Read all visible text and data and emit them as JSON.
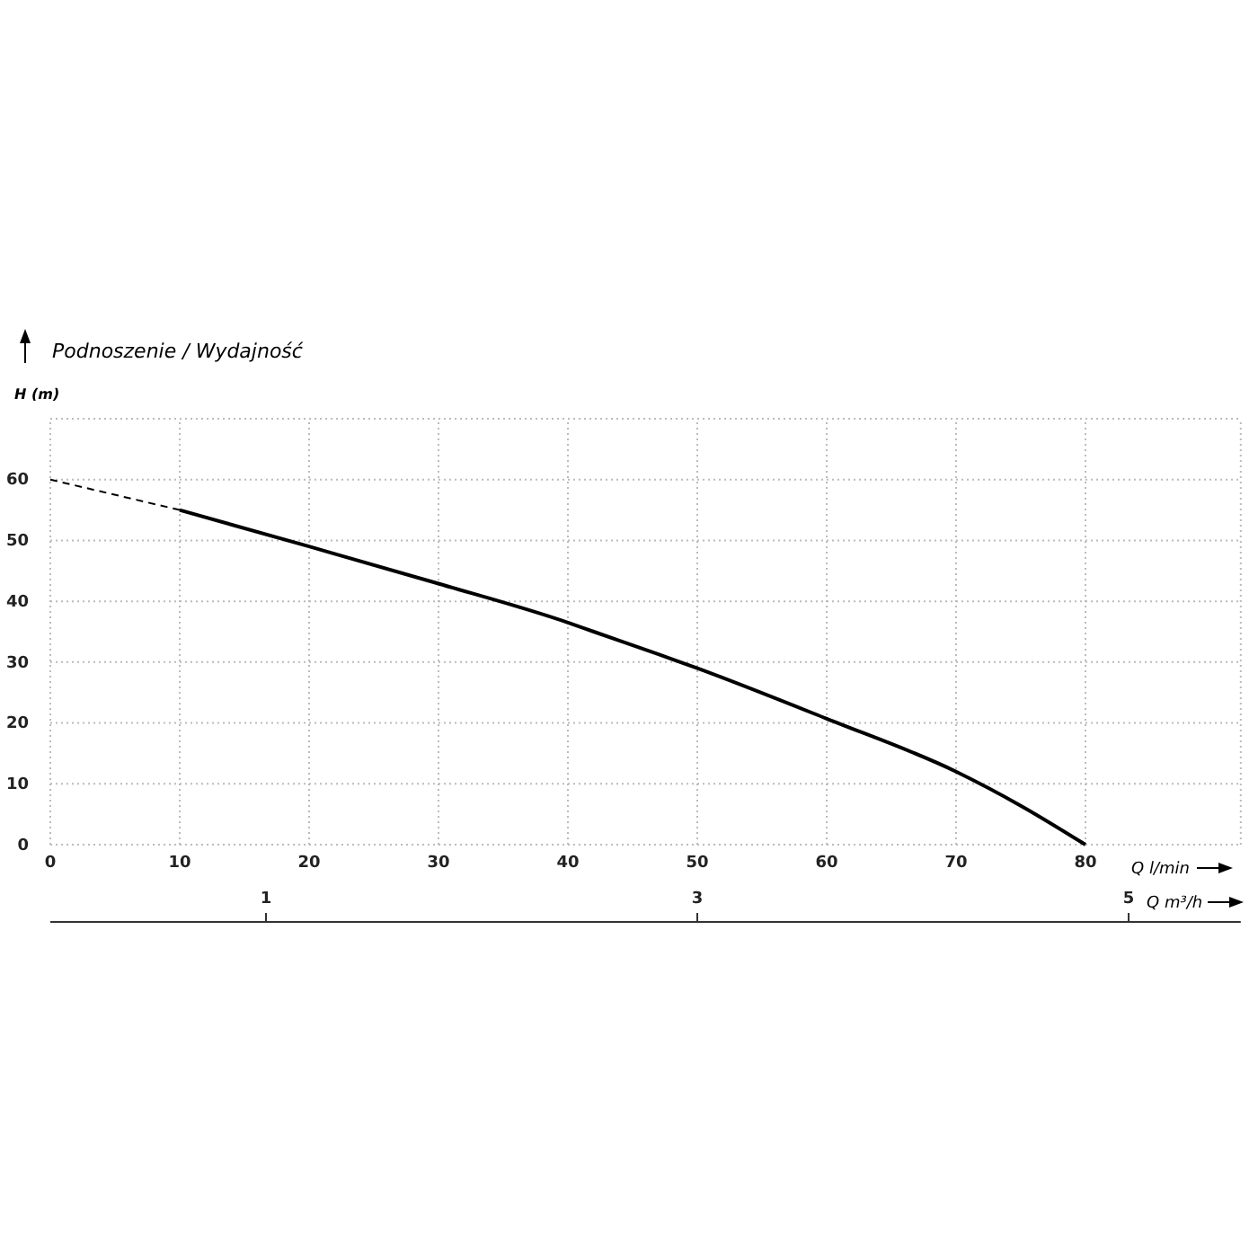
{
  "chart_data": {
    "type": "line",
    "title": "Podnoszenie / Wydajność",
    "xlabel": "Q l/min",
    "ylabel": "H (m)",
    "x2label": "Q m³/h",
    "xlim": [
      0,
      92
    ],
    "xticks": [
      0,
      10,
      20,
      30,
      40,
      50,
      60,
      70,
      80
    ],
    "ylim": [
      0,
      70
    ],
    "yticks": [
      0,
      10,
      20,
      30,
      40,
      50,
      60
    ],
    "x2lim": [
      0,
      5.52
    ],
    "x2ticks": [
      1,
      3,
      5
    ],
    "grid": true,
    "marker": "none",
    "series": [
      {
        "color": "#000000",
        "line_style": "dashed",
        "x": [
          0,
          10
        ],
        "values": [
          60,
          55
        ]
      },
      {
        "color": "#000000",
        "line_style": "solid",
        "x": [
          10,
          20,
          30,
          40,
          42,
          47,
          50,
          60,
          70,
          75,
          80
        ],
        "values": [
          55,
          49,
          42.9,
          36.5,
          35,
          31.3,
          29,
          20.7,
          12,
          6.4,
          0
        ]
      }
    ]
  }
}
